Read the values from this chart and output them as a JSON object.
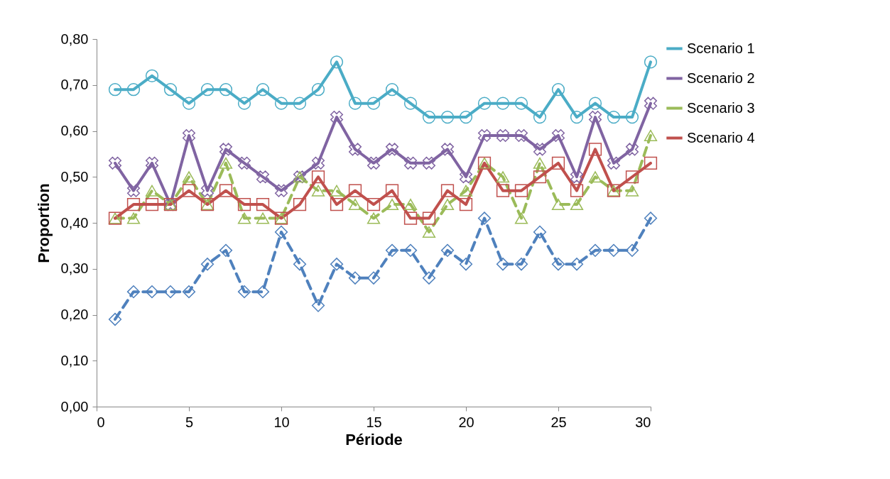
{
  "chart_data": {
    "type": "line",
    "xlabel": "Période",
    "ylabel": "Proportion",
    "x": [
      1,
      2,
      3,
      4,
      5,
      6,
      7,
      8,
      9,
      10,
      11,
      12,
      13,
      14,
      15,
      16,
      17,
      18,
      19,
      20,
      21,
      22,
      23,
      24,
      25,
      26,
      27,
      28,
      29,
      30
    ],
    "series": [
      {
        "name": "Scenario 1",
        "color": "#4bacc6",
        "marker": "circle",
        "line_style": "solid",
        "values": [
          0.69,
          0.69,
          0.72,
          0.69,
          0.66,
          0.69,
          0.69,
          0.66,
          0.69,
          0.66,
          0.66,
          0.69,
          0.75,
          0.66,
          0.66,
          0.69,
          0.66,
          0.63,
          0.63,
          0.63,
          0.66,
          0.66,
          0.66,
          0.63,
          0.69,
          0.63,
          0.66,
          0.63,
          0.63,
          0.75
        ]
      },
      {
        "name": "Scenario 2",
        "color": "#8064a2",
        "marker": "cross",
        "line_style": "solid",
        "values": [
          0.53,
          0.47,
          0.53,
          0.44,
          0.59,
          0.47,
          0.56,
          0.53,
          0.5,
          0.47,
          0.5,
          0.53,
          0.63,
          0.56,
          0.53,
          0.56,
          0.53,
          0.53,
          0.56,
          0.5,
          0.59,
          0.59,
          0.59,
          0.56,
          0.59,
          0.5,
          0.63,
          0.53,
          0.56,
          0.66
        ]
      },
      {
        "name": "Scenario 3",
        "color": "#9bbb59",
        "marker": "triangle",
        "line_style": "dashed",
        "values": [
          0.41,
          0.41,
          0.47,
          0.44,
          0.5,
          0.44,
          0.53,
          0.41,
          0.41,
          0.41,
          0.5,
          0.47,
          0.47,
          0.44,
          0.41,
          0.44,
          0.44,
          0.38,
          0.44,
          0.47,
          0.53,
          0.5,
          0.41,
          0.53,
          0.44,
          0.44,
          0.5,
          0.47,
          0.47,
          0.59
        ]
      },
      {
        "name": "Scenario 4",
        "color": "#c0504d",
        "marker": "square",
        "line_style": "solid",
        "values": [
          0.41,
          0.44,
          0.44,
          0.44,
          0.47,
          0.44,
          0.47,
          0.44,
          0.44,
          0.41,
          0.44,
          0.5,
          0.44,
          0.47,
          0.44,
          0.47,
          0.41,
          0.41,
          0.47,
          0.44,
          0.53,
          0.47,
          0.47,
          0.5,
          0.53,
          0.47,
          0.56,
          0.47,
          0.5,
          0.53
        ]
      },
      {
        "color": "#4f81bd",
        "marker": "diamond",
        "line_style": "dashed",
        "values": [
          0.19,
          0.25,
          0.25,
          0.25,
          0.25,
          0.31,
          0.34,
          0.25,
          0.25,
          0.38,
          0.31,
          0.22,
          0.31,
          0.28,
          0.28,
          0.34,
          0.34,
          0.28,
          0.34,
          0.31,
          0.41,
          0.31,
          0.31,
          0.38,
          0.31,
          0.31,
          0.34,
          0.34,
          0.34,
          0.41
        ]
      }
    ],
    "xlim": [
      0,
      30
    ],
    "xticks": [
      0,
      5,
      10,
      15,
      20,
      25,
      30
    ],
    "ylim": [
      0,
      0.8
    ],
    "yticks": [
      {
        "value": 0,
        "label": "0,00"
      },
      {
        "value": 0.1,
        "label": "0,10"
      },
      {
        "value": 0.2,
        "label": "0,20"
      },
      {
        "value": 0.3,
        "label": "0,30"
      },
      {
        "value": 0.4,
        "label": "0,40"
      },
      {
        "value": 0.5,
        "label": "0,50"
      },
      {
        "value": 0.6,
        "label": "0,60"
      },
      {
        "value": 0.7,
        "label": "0,70"
      },
      {
        "value": 0.8,
        "label": "0,80"
      }
    ],
    "grid": false,
    "legend": "right"
  }
}
